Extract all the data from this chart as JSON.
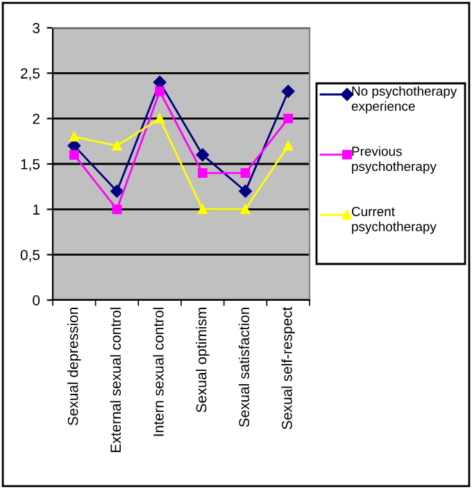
{
  "chart_data": {
    "type": "line",
    "categories": [
      "Sexual depression",
      "External sexual control",
      "Intern sexual control",
      "Sexual optimism",
      "Sexual satisfaction",
      "Sexual self-respect"
    ],
    "series": [
      {
        "name": "No psychotherapy experience",
        "color": "#000080",
        "marker": "diamond",
        "values": [
          1.7,
          1.2,
          2.4,
          1.6,
          1.2,
          2.3
        ]
      },
      {
        "name": "Previous psychotherapy",
        "color": "#ff00ff",
        "marker": "square",
        "values": [
          1.6,
          1.0,
          2.3,
          1.4,
          1.4,
          2.0
        ]
      },
      {
        "name": "Current psychotherapy",
        "color": "#ffff00",
        "marker": "triangle",
        "values": [
          1.8,
          1.7,
          2.0,
          1.0,
          1.0,
          1.7
        ]
      }
    ],
    "ylim": [
      0,
      3
    ],
    "yticks": [
      0,
      {
        "value": 0.5,
        "label": "0,5"
      },
      1,
      {
        "value": 1.5,
        "label": "1,5"
      },
      2,
      {
        "value": 2.5,
        "label": "2,5"
      },
      3
    ],
    "grid": "y",
    "legend": "right",
    "line_style": "solid"
  }
}
